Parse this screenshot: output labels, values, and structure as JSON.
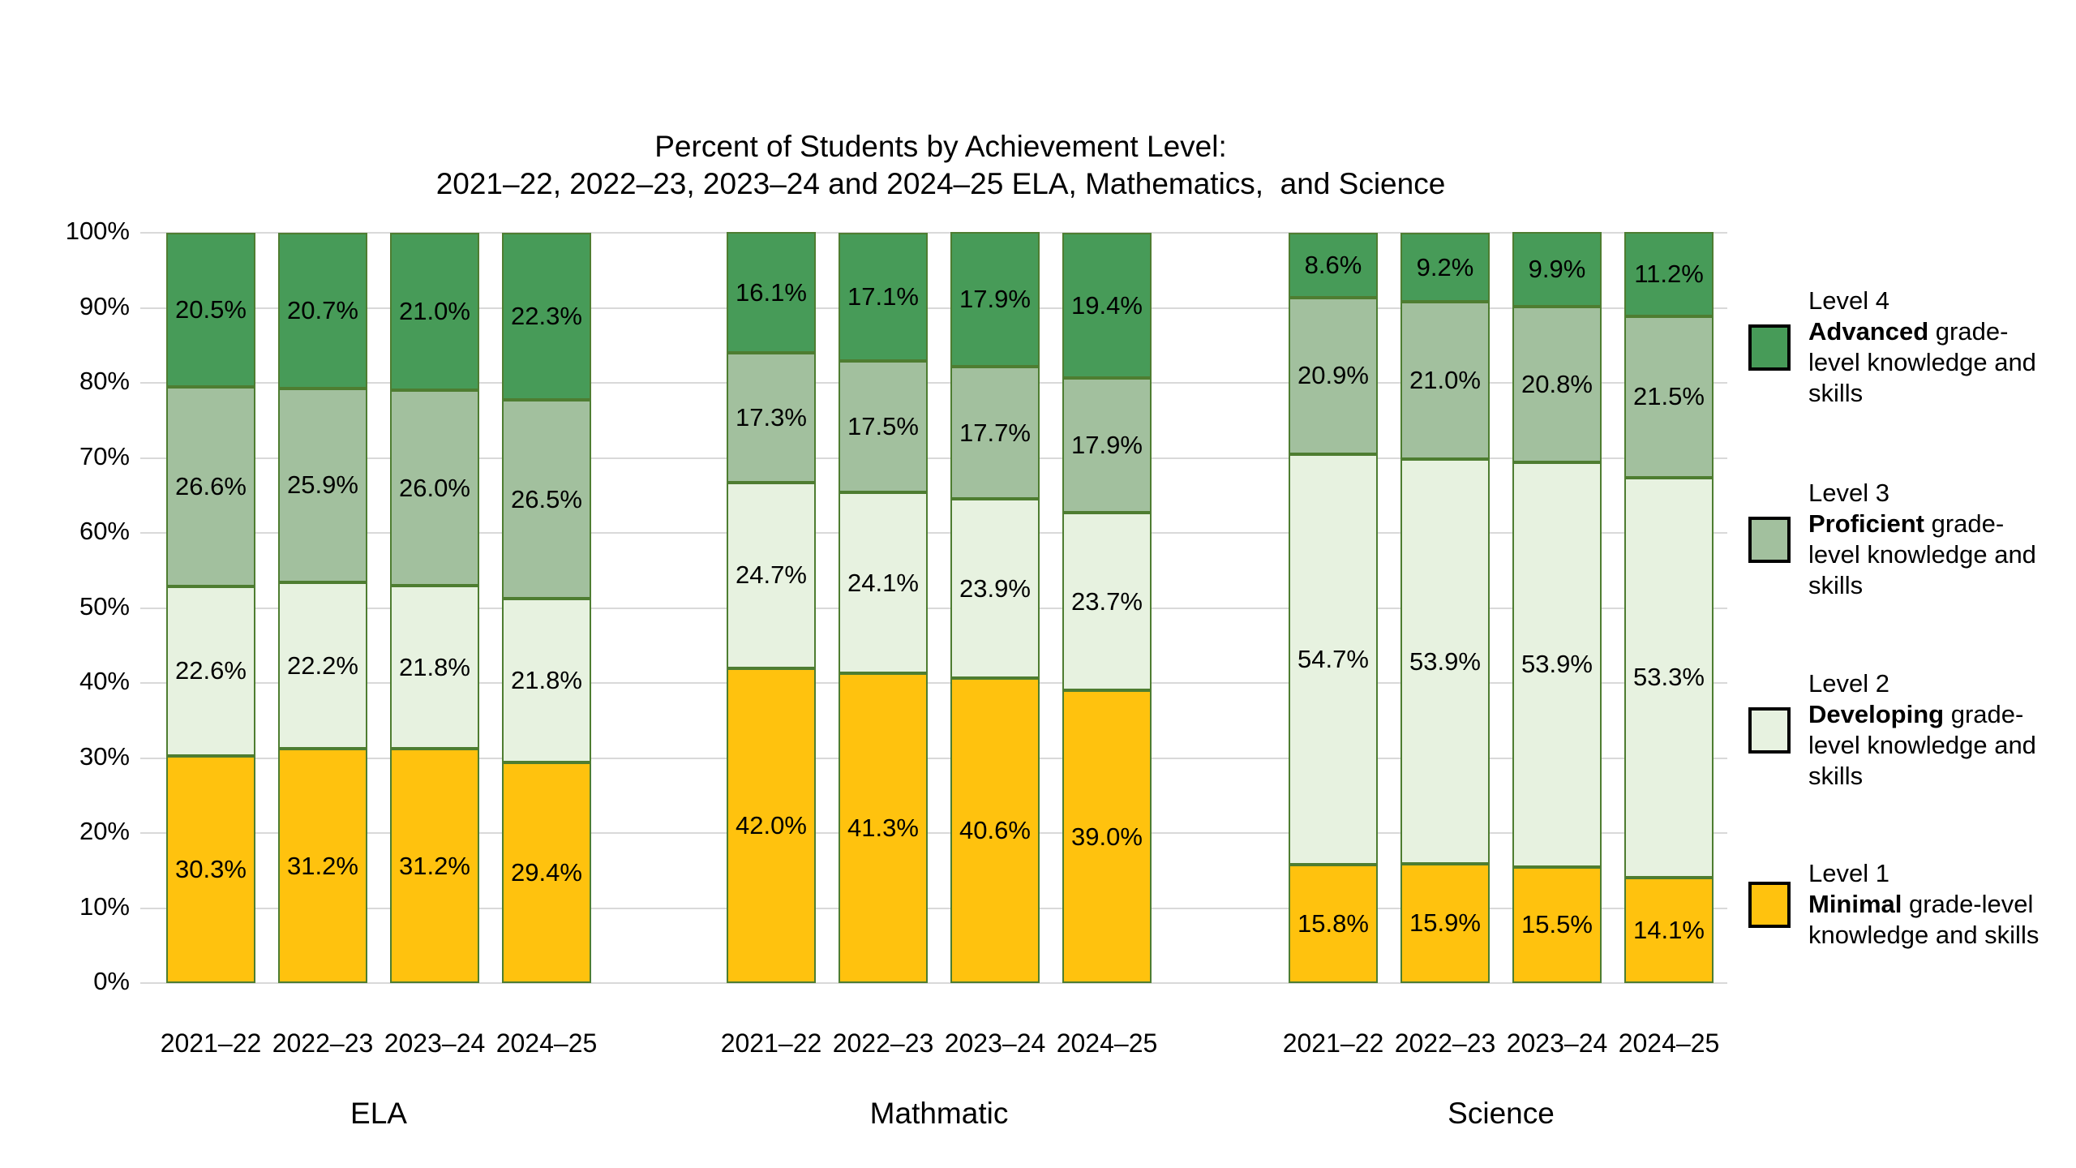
{
  "title": {
    "line1": "Percent of Students by Achievement Level:",
    "line2": "2021–22, 2022–23, 2023–24 and 2024–25 ELA, Mathematics,  and Science"
  },
  "colors": {
    "level1": "#ffc20e",
    "level2": "#e7f2e0",
    "level3": "#a2c09e",
    "level4": "#479b58",
    "segment_border": "#4e7d31",
    "gridline": "#d9d9d9",
    "swatch_border": "#000000",
    "text": "#000000",
    "background": "#ffffff"
  },
  "yaxis": {
    "ticks": [
      "0%",
      "10%",
      "20%",
      "30%",
      "40%",
      "50%",
      "60%",
      "70%",
      "80%",
      "90%",
      "100%"
    ],
    "min": 0,
    "max": 100
  },
  "chart_data": {
    "type": "bar",
    "stacked": true,
    "grid": true,
    "legend_position": "right",
    "value_unit": "percent",
    "ylim": [
      0,
      100
    ],
    "title": "Percent of Students by Achievement Level: 2021–22, 2022–23, 2023–24 and 2024–25 ELA, Mathematics, and Science",
    "level_order": [
      "level1",
      "level2",
      "level3",
      "level4"
    ],
    "series_names": {
      "level1": "Level 1 Minimal grade-level knowledge and skills",
      "level2": "Level 2 Developing grade-level knowledge and skills",
      "level3": "Level 3 Proficient grade-level knowledge and skills",
      "level4": "Level 4 Advanced grade-level knowledge and skills"
    },
    "categories": [
      "2021–22",
      "2022–23",
      "2023–24",
      "2024–25"
    ],
    "groups": [
      {
        "label": "ELA",
        "bars": [
          {
            "year": "2021–22",
            "values": {
              "level1": 30.3,
              "level2": 22.6,
              "level3": 26.6,
              "level4": 20.5
            }
          },
          {
            "year": "2022–23",
            "values": {
              "level1": 31.2,
              "level2": 22.2,
              "level3": 25.9,
              "level4": 20.7
            }
          },
          {
            "year": "2023–24",
            "values": {
              "level1": 31.2,
              "level2": 21.8,
              "level3": 26.0,
              "level4": 21.0
            }
          },
          {
            "year": "2024–25",
            "values": {
              "level1": 29.4,
              "level2": 21.8,
              "level3": 26.5,
              "level4": 22.3
            }
          }
        ]
      },
      {
        "label": "Mathmatic",
        "bars": [
          {
            "year": "2021–22",
            "values": {
              "level1": 42.0,
              "level2": 24.7,
              "level3": 17.3,
              "level4": 16.1
            }
          },
          {
            "year": "2022–23",
            "values": {
              "level1": 41.3,
              "level2": 24.1,
              "level3": 17.5,
              "level4": 17.1
            }
          },
          {
            "year": "2023–24",
            "values": {
              "level1": 40.6,
              "level2": 23.9,
              "level3": 17.7,
              "level4": 17.9
            }
          },
          {
            "year": "2024–25",
            "values": {
              "level1": 39.0,
              "level2": 23.7,
              "level3": 17.9,
              "level4": 19.4
            }
          }
        ]
      },
      {
        "label": "Science",
        "bars": [
          {
            "year": "2021–22",
            "values": {
              "level1": 15.8,
              "level2": 54.7,
              "level3": 20.9,
              "level4": 8.6
            }
          },
          {
            "year": "2022–23",
            "values": {
              "level1": 15.9,
              "level2": 53.9,
              "level3": 21.0,
              "level4": 9.2
            }
          },
          {
            "year": "2023–24",
            "values": {
              "level1": 15.5,
              "level2": 53.9,
              "level3": 20.8,
              "level4": 9.9
            }
          },
          {
            "year": "2024–25",
            "values": {
              "level1": 14.1,
              "level2": 53.3,
              "level3": 21.5,
              "level4": 11.2
            }
          }
        ]
      }
    ]
  },
  "legend": {
    "entries": [
      {
        "level": "Level 4",
        "bold": "Advanced",
        "rest": " grade-level knowledge and skills",
        "color_key": "level4"
      },
      {
        "level": "Level 3",
        "bold": "Proficient",
        "rest": " grade-level knowledge and skills",
        "color_key": "level3"
      },
      {
        "level": "Level 2",
        "bold": "Developing",
        "rest": " grade-level knowledge and skills",
        "color_key": "level2"
      },
      {
        "level": "Level 1",
        "bold": "Minimal",
        "rest": " grade-level knowledge and skills",
        "color_key": "level1"
      }
    ]
  }
}
